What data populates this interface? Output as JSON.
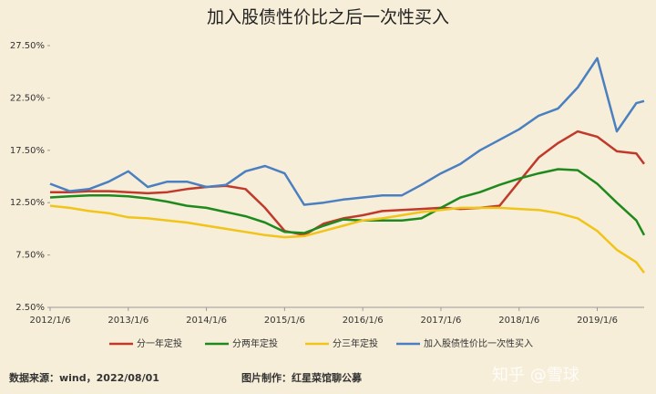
{
  "chart_data": {
    "type": "line",
    "title": "加入股债性价比之后一次性买入",
    "x": [
      2012.0,
      2012.25,
      2012.5,
      2012.75,
      2013.0,
      2013.25,
      2013.5,
      2013.75,
      2014.0,
      2014.25,
      2014.5,
      2014.75,
      2015.0,
      2015.25,
      2015.5,
      2015.75,
      2016.0,
      2016.25,
      2016.5,
      2016.75,
      2017.0,
      2017.25,
      2017.5,
      2017.75,
      2018.0,
      2018.25,
      2018.5,
      2018.75,
      2019.0,
      2019.25,
      2019.5,
      2019.6
    ],
    "series": [
      {
        "name": "分一年定投",
        "color": "#c0392b",
        "values": [
          13.5,
          13.5,
          13.6,
          13.6,
          13.5,
          13.4,
          13.5,
          13.8,
          14.0,
          14.1,
          13.8,
          12.0,
          9.8,
          9.4,
          10.5,
          11.0,
          11.3,
          11.7,
          11.8,
          11.9,
          12.0,
          11.9,
          12.0,
          12.2,
          14.5,
          16.8,
          18.2,
          19.3,
          18.8,
          17.4,
          17.2,
          16.2
        ]
      },
      {
        "name": "分两年定投",
        "color": "#1e8a1e",
        "values": [
          13.0,
          13.1,
          13.2,
          13.2,
          13.1,
          12.9,
          12.6,
          12.2,
          12.0,
          11.6,
          11.2,
          10.6,
          9.7,
          9.6,
          10.3,
          10.9,
          10.8,
          10.8,
          10.8,
          11.0,
          12.0,
          13.0,
          13.5,
          14.2,
          14.8,
          15.3,
          15.7,
          15.6,
          14.3,
          12.5,
          10.8,
          9.4
        ]
      },
      {
        "name": "分三年定投",
        "color": "#f0c419",
        "values": [
          12.2,
          12.0,
          11.7,
          11.5,
          11.1,
          11.0,
          10.8,
          10.6,
          10.3,
          10.0,
          9.7,
          9.4,
          9.2,
          9.3,
          9.8,
          10.3,
          10.8,
          11.0,
          11.3,
          11.6,
          11.8,
          12.0,
          12.0,
          12.0,
          11.9,
          11.8,
          11.5,
          11.0,
          9.8,
          8.0,
          6.8,
          5.8
        ]
      },
      {
        "name": "加入股债性价比一次性买入",
        "color": "#4a7fc1",
        "values": [
          14.3,
          13.6,
          13.8,
          14.5,
          15.5,
          14.0,
          14.5,
          14.5,
          14.0,
          14.2,
          15.5,
          16.0,
          15.3,
          12.3,
          12.5,
          12.8,
          13.0,
          13.2,
          13.2,
          14.2,
          15.3,
          16.2,
          17.5,
          18.5,
          19.5,
          20.8,
          21.5,
          23.5,
          26.3,
          19.3,
          22.0,
          22.2
        ]
      }
    ],
    "xlim": [
      2012.0,
      2019.6
    ],
    "xticks": [
      {
        "value": 2012,
        "label": "2012/1/6"
      },
      {
        "value": 2013,
        "label": "2013/1/6"
      },
      {
        "value": 2014,
        "label": "2014/1/6"
      },
      {
        "value": 2015,
        "label": "2015/1/6"
      },
      {
        "value": 2016,
        "label": "2016/1/6"
      },
      {
        "value": 2017,
        "label": "2017/1/6"
      },
      {
        "value": 2018,
        "label": "2018/1/6"
      },
      {
        "value": 2019,
        "label": "2019/1/6"
      }
    ],
    "ylim": [
      2.5,
      27.5
    ],
    "yticks": [
      {
        "value": 2.5,
        "label": "2.50%"
      },
      {
        "value": 7.5,
        "label": "7.50%"
      },
      {
        "value": 12.5,
        "label": "12.50%"
      },
      {
        "value": 17.5,
        "label": "17.50%"
      },
      {
        "value": 22.5,
        "label": "22.50%"
      },
      {
        "value": 27.5,
        "label": "27.50%"
      }
    ],
    "grid": false,
    "source": "数据来源：wind，2022/08/01",
    "credit": "图片制作：红星菜馆聊公募",
    "watermark": "知乎 @雪球"
  }
}
